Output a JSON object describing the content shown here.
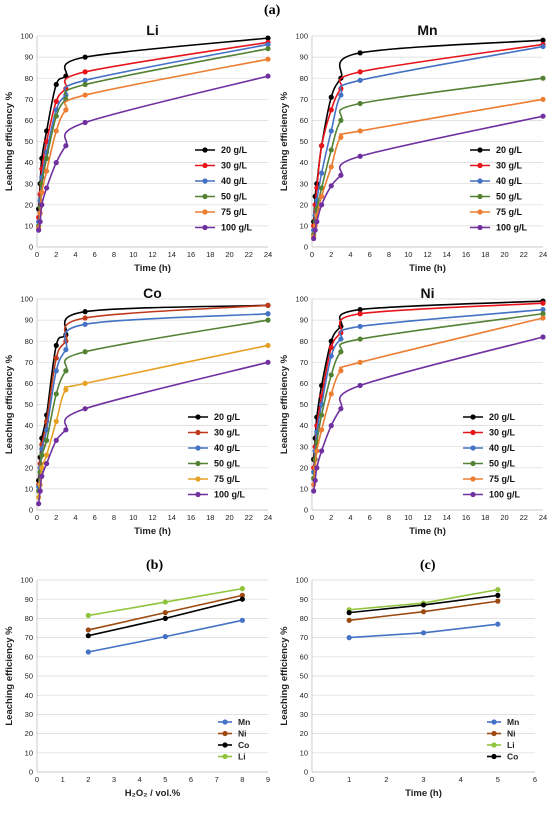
{
  "figure": {
    "labels": {
      "a": "(a)",
      "b": "(b)",
      "c": "(c)"
    }
  },
  "chart_data": [
    {
      "type": "line",
      "title": "Li",
      "xlabel": "Time (h)",
      "ylabel": "Leaching efficiency %",
      "xlim": [
        0,
        24
      ],
      "ylim": [
        0,
        100
      ],
      "xticks": [
        0,
        2,
        4,
        6,
        8,
        10,
        12,
        14,
        16,
        18,
        20,
        22,
        24
      ],
      "yticks": [
        0,
        10,
        20,
        30,
        40,
        50,
        60,
        70,
        80,
        90,
        100
      ],
      "legend": "bottom-right",
      "x": [
        0.17,
        0.33,
        0.5,
        1,
        2,
        3,
        5,
        24
      ],
      "series": [
        {
          "name": "20 g/L",
          "color": "#000000",
          "values": [
            18,
            30,
            42,
            55,
            77,
            81,
            90,
            99
          ]
        },
        {
          "name": "30 g/L",
          "color": "#e8141b",
          "values": [
            14,
            25,
            37,
            50,
            69,
            75,
            83,
            97
          ]
        },
        {
          "name": "40 g/L",
          "color": "#4472c4",
          "values": [
            12,
            22,
            33,
            45,
            65,
            72,
            79,
            96
          ]
        },
        {
          "name": "50 g/L",
          "color": "#548235",
          "values": [
            10,
            19,
            30,
            42,
            62,
            70,
            77,
            94
          ]
        },
        {
          "name": "75 g/L",
          "color": "#ed7d31",
          "values": [
            9,
            16,
            26,
            36,
            55,
            65,
            72,
            89
          ]
        },
        {
          "name": "100 g/L",
          "color": "#7030a0",
          "values": [
            8,
            12,
            20,
            28,
            40,
            48,
            59,
            81
          ]
        }
      ]
    },
    {
      "type": "line",
      "title": "Mn",
      "xlabel": "Time (h)",
      "ylabel": "Leaching efficiency %",
      "xlim": [
        0,
        24
      ],
      "ylim": [
        0,
        100
      ],
      "xticks": [
        0,
        2,
        4,
        6,
        8,
        10,
        12,
        14,
        16,
        18,
        20,
        22,
        24
      ],
      "yticks": [
        0,
        10,
        20,
        30,
        40,
        50,
        60,
        70,
        80,
        90,
        100
      ],
      "legend": "bottom-right",
      "x": [
        0.17,
        0.33,
        0.5,
        1,
        2,
        3,
        5,
        24
      ],
      "series": [
        {
          "name": "20 g/L",
          "color": "#000000",
          "values": [
            12,
            24,
            30,
            48,
            71,
            80,
            92,
            98
          ]
        },
        {
          "name": "30 g/L",
          "color": "#e8141b",
          "values": [
            10,
            20,
            28,
            48,
            65,
            75,
            83,
            96
          ]
        },
        {
          "name": "40 g/L",
          "color": "#4472c4",
          "values": [
            8,
            15,
            22,
            35,
            55,
            72,
            79,
            95
          ]
        },
        {
          "name": "50 g/L",
          "color": "#548235",
          "values": [
            6,
            12,
            18,
            28,
            46,
            60,
            68,
            80
          ]
        },
        {
          "name": "75 g/L",
          "color": "#ed7d31",
          "values": [
            5,
            10,
            15,
            24,
            38,
            52,
            55,
            70
          ]
        },
        {
          "name": "100 g/L",
          "color": "#7030a0",
          "values": [
            4,
            8,
            12,
            20,
            29,
            34,
            43,
            62
          ]
        }
      ]
    },
    {
      "type": "line",
      "title": "Co",
      "xlabel": "Time (h)",
      "ylabel": "Leaching efficiency %",
      "xlim": [
        0,
        24
      ],
      "ylim": [
        0,
        100
      ],
      "xticks": [
        0,
        2,
        4,
        6,
        8,
        10,
        12,
        14,
        16,
        18,
        20,
        22,
        24
      ],
      "yticks": [
        0,
        10,
        20,
        30,
        40,
        50,
        60,
        70,
        80,
        90,
        100
      ],
      "legend": "bottom-right",
      "x": [
        0.17,
        0.33,
        0.5,
        1,
        2,
        3,
        5,
        24
      ],
      "series": [
        {
          "name": "20 g/L",
          "color": "#000000",
          "values": [
            14,
            25,
            34,
            45,
            78,
            83,
            94,
            97
          ]
        },
        {
          "name": "30 g/L",
          "color": "#c0391b",
          "values": [
            12,
            22,
            31,
            42,
            72,
            80,
            91,
            97
          ]
        },
        {
          "name": "40 g/L",
          "color": "#4472c4",
          "values": [
            11,
            20,
            29,
            38,
            66,
            76,
            88,
            93
          ]
        },
        {
          "name": "50 g/L",
          "color": "#548235",
          "values": [
            9,
            18,
            26,
            33,
            55,
            66,
            75,
            90
          ]
        },
        {
          "name": "75 g/L",
          "color": "#e6a125",
          "values": [
            6,
            12,
            20,
            26,
            42,
            57,
            60,
            78
          ]
        },
        {
          "name": "100 g/L",
          "color": "#7030a0",
          "values": [
            3,
            9,
            16,
            22,
            33,
            38,
            48,
            70
          ]
        }
      ]
    },
    {
      "type": "line",
      "title": "Ni",
      "xlabel": "Time (h)",
      "ylabel": "Leaching efficiency %",
      "xlim": [
        0,
        24
      ],
      "ylim": [
        0,
        100
      ],
      "xticks": [
        0,
        2,
        4,
        6,
        8,
        10,
        12,
        14,
        16,
        18,
        20,
        22,
        24
      ],
      "yticks": [
        0,
        10,
        20,
        30,
        40,
        50,
        60,
        70,
        80,
        90,
        100
      ],
      "legend": "bottom-right",
      "x": [
        0.17,
        0.33,
        0.5,
        1,
        2,
        3,
        5,
        24
      ],
      "series": [
        {
          "name": "20 g/L",
          "color": "#000000",
          "values": [
            24,
            34,
            44,
            59,
            80,
            87,
            95,
            99
          ]
        },
        {
          "name": "30 g/L",
          "color": "#e8141b",
          "values": [
            20,
            30,
            40,
            54,
            77,
            84,
            93,
            98
          ]
        },
        {
          "name": "40 g/L",
          "color": "#4472c4",
          "values": [
            18,
            28,
            37,
            50,
            73,
            81,
            87,
            95
          ]
        },
        {
          "name": "50 g/L",
          "color": "#548235",
          "values": [
            15,
            24,
            32,
            45,
            64,
            75,
            81,
            93
          ]
        },
        {
          "name": "75 g/L",
          "color": "#ed7d31",
          "values": [
            12,
            20,
            28,
            38,
            55,
            66,
            70,
            91
          ]
        },
        {
          "name": "100 g/L",
          "color": "#7030a0",
          "values": [
            9,
            14,
            20,
            28,
            40,
            48,
            59,
            82
          ]
        }
      ]
    },
    {
      "type": "line",
      "title": "",
      "xlabel": "H₂O₂ / vol.%",
      "ylabel": "Leaching efficiency %",
      "xlim": [
        0,
        9
      ],
      "ylim": [
        0,
        100
      ],
      "xticks": [
        0,
        1,
        2,
        3,
        4,
        5,
        6,
        7,
        8,
        9
      ],
      "yticks": [
        0,
        10,
        20,
        30,
        40,
        50,
        60,
        70,
        80,
        90,
        100
      ],
      "legend": "bottom-right",
      "x": [
        2,
        5,
        8
      ],
      "series": [
        {
          "name": "Mn",
          "color": "#4472c4",
          "values": [
            62.5,
            70.5,
            79
          ]
        },
        {
          "name": "Ni",
          "color": "#9c4a0f",
          "values": [
            74,
            83,
            92
          ]
        },
        {
          "name": "Co",
          "color": "#000000",
          "values": [
            71,
            80,
            90
          ]
        },
        {
          "name": "Li",
          "color": "#8fc43c",
          "values": [
            81.5,
            88.5,
            95.5
          ]
        }
      ]
    },
    {
      "type": "line",
      "title": "",
      "xlabel": "Time (h)",
      "ylabel": "Leaching efficiency %",
      "xlim": [
        0,
        6
      ],
      "ylim": [
        0,
        100
      ],
      "xticks": [
        0,
        1,
        2,
        3,
        4,
        5,
        6
      ],
      "yticks": [
        0,
        10,
        20,
        30,
        40,
        50,
        60,
        70,
        80,
        90,
        100
      ],
      "legend": "bottom-right",
      "x": [
        1,
        3,
        5
      ],
      "series": [
        {
          "name": "Mn",
          "color": "#4472c4",
          "values": [
            70,
            72.5,
            77
          ]
        },
        {
          "name": "Ni",
          "color": "#9c4a0f",
          "values": [
            79,
            83.5,
            89
          ]
        },
        {
          "name": "Li",
          "color": "#8fc43c",
          "values": [
            84.5,
            88,
            95
          ]
        },
        {
          "name": "Co",
          "color": "#000000",
          "values": [
            83,
            87,
            92
          ]
        }
      ]
    }
  ]
}
